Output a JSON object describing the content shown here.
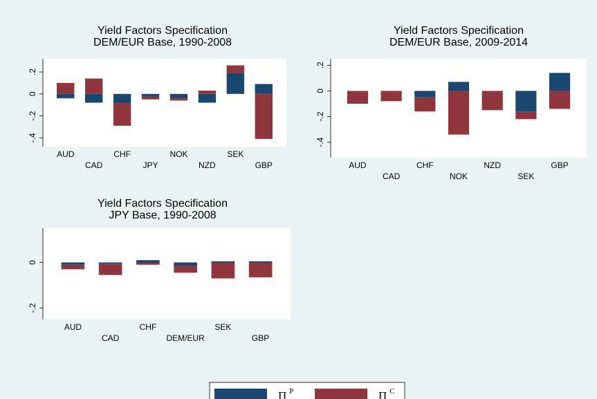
{
  "chart_data": [
    {
      "type": "bar",
      "stacked": true,
      "title": [
        "Yield Factors Specification",
        "DEM/EUR Base, 1990-2008"
      ],
      "categories": [
        "AUD",
        "CAD",
        "CHF",
        "JPY",
        "NOK",
        "NZD",
        "SEK",
        "GBP"
      ],
      "series": [
        {
          "name": "ΠP",
          "color": "#1a476f",
          "values": [
            -0.04,
            -0.08,
            -0.08,
            -0.02,
            -0.04,
            -0.08,
            0.19,
            0.09
          ]
        },
        {
          "name": "ΠC",
          "color": "#90353b",
          "values": [
            0.1,
            0.14,
            -0.21,
            -0.03,
            -0.02,
            0.03,
            0.07,
            -0.41
          ]
        }
      ],
      "ylim": [
        -0.48,
        0.32
      ],
      "yticks": [
        {
          "value": 0.2,
          "label": ".2"
        },
        0,
        {
          "value": -0.2,
          "label": "-.2"
        },
        {
          "value": -0.4,
          "label": "-.4"
        }
      ]
    },
    {
      "type": "bar",
      "stacked": true,
      "title": [
        "Yield Factors Specification",
        "DEM/EUR Base, 2009-2014"
      ],
      "categories": [
        "AUD",
        "CAD",
        "CHF",
        "NOK",
        "NZD",
        "SEK",
        "GBP"
      ],
      "series": [
        {
          "name": "ΠP",
          "color": "#1a476f",
          "values": [
            0,
            0,
            -0.05,
            0.07,
            0,
            -0.16,
            0.14
          ]
        },
        {
          "name": "ΠC",
          "color": "#90353b",
          "values": [
            -0.1,
            -0.08,
            -0.11,
            -0.34,
            -0.15,
            -0.06,
            -0.14
          ]
        }
      ],
      "ylim": [
        -0.52,
        0.25
      ],
      "yticks": [
        {
          "value": 0.2,
          "label": ".2"
        },
        0,
        {
          "value": -0.2,
          "label": "-.2"
        },
        {
          "value": -0.4,
          "label": "-.4"
        }
      ]
    },
    {
      "type": "bar",
      "stacked": true,
      "title": [
        "Yield Factors Specification",
        "JPY Base, 1990-2008"
      ],
      "categories": [
        "AUD",
        "CAD",
        "CHF",
        "DEM/EUR",
        "SEK",
        "GBP"
      ],
      "series": [
        {
          "name": "ΠP",
          "color": "#1a476f",
          "values": [
            -0.01,
            -0.005,
            0.01,
            -0.015,
            0.005,
            0.005
          ]
        },
        {
          "name": "ΠC",
          "color": "#90353b",
          "values": [
            -0.02,
            -0.05,
            -0.01,
            -0.03,
            -0.07,
            -0.065
          ]
        }
      ],
      "ylim": [
        -0.25,
        0.15
      ],
      "yticks": [
        0,
        {
          "value": -0.2,
          "label": "-.2"
        }
      ]
    }
  ]
}
